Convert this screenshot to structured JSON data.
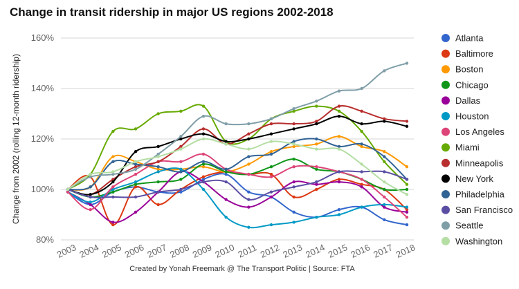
{
  "chart_data": {
    "type": "line",
    "title": "Change in transit ridership in major US regions 2002-2018",
    "ylabel": "Change from 2002 (rolling 12-month ridership)",
    "xlabel": "",
    "x": [
      "2003",
      "2004",
      "2005",
      "2006",
      "2007",
      "2008",
      "2009",
      "2010",
      "2011",
      "2012",
      "2013",
      "2014",
      "2015",
      "2016",
      "2017",
      "2018"
    ],
    "ylim": [
      80,
      160
    ],
    "yticks": [
      80,
      100,
      120,
      140,
      160
    ],
    "ytick_labels": [
      "80%",
      "100%",
      "120%",
      "140%",
      "160%"
    ],
    "grid": true,
    "legend_position": "right",
    "footer": "Created by Yonah Freemark @ The Transport Politic | Source: FTA",
    "series": [
      {
        "name": "Atlanta",
        "color": "#3366cc",
        "values": [
          99,
          94,
          99,
          101,
          99,
          99,
          104,
          106,
          99,
          97,
          91,
          89,
          92,
          93,
          88,
          86
        ]
      },
      {
        "name": "Baltimore",
        "color": "#dc3912",
        "values": [
          100,
          105,
          86,
          101,
          94,
          100,
          105,
          107,
          106,
          106,
          97,
          100,
          104,
          102,
          100,
          92
        ]
      },
      {
        "name": "Boston",
        "color": "#ff9900",
        "values": [
          100,
          101,
          113,
          111,
          108,
          108,
          109,
          107,
          110,
          115,
          117,
          118,
          121,
          117,
          115,
          109
        ]
      },
      {
        "name": "Chicago",
        "color": "#109618",
        "values": [
          100,
          97,
          99,
          102,
          103,
          104,
          110,
          107,
          106,
          109,
          112,
          108,
          107,
          104,
          100,
          100
        ]
      },
      {
        "name": "Dallas",
        "color": "#990099",
        "values": [
          99,
          94,
          87,
          91,
          99,
          107,
          103,
          96,
          93,
          97,
          103,
          102,
          103,
          101,
          93,
          91
        ]
      },
      {
        "name": "Houston",
        "color": "#0099c6",
        "values": [
          99,
          95,
          100,
          103,
          107,
          108,
          100,
          89,
          85,
          86,
          87,
          89,
          90,
          93,
          94,
          93
        ]
      },
      {
        "name": "Los Angeles",
        "color": "#dd4477",
        "values": [
          99,
          92,
          101,
          106,
          111,
          111,
          114,
          108,
          106,
          105,
          109,
          109,
          107,
          104,
          97,
          89
        ]
      },
      {
        "name": "Miami",
        "color": "#66aa00",
        "values": [
          100,
          106,
          123,
          124,
          130,
          131,
          133,
          119,
          120,
          128,
          131,
          133,
          131,
          123,
          111,
          102
        ]
      },
      {
        "name": "Minneapolis",
        "color": "#b82e2e",
        "values": [
          100,
          98,
          104,
          109,
          111,
          117,
          124,
          118,
          122,
          126,
          126,
          127,
          133,
          131,
          128,
          127
        ]
      },
      {
        "name": "New York",
        "color": "#000000",
        "values": [
          100,
          98,
          103,
          115,
          117,
          120,
          122,
          119,
          120,
          122,
          124,
          126,
          129,
          126,
          127,
          125
        ]
      },
      {
        "name": "Philadelphia",
        "color": "#316395",
        "values": [
          100,
          101,
          111,
          110,
          109,
          107,
          111,
          108,
          113,
          114,
          119,
          120,
          117,
          118,
          113,
          104
        ]
      },
      {
        "name": "San Francisco",
        "color": "#5a4ea4",
        "values": [
          100,
          97,
          97,
          97,
          99,
          100,
          103,
          103,
          96,
          99,
          101,
          103,
          107,
          107,
          107,
          104
        ]
      },
      {
        "name": "Seattle",
        "color": "#7f9ea8",
        "values": [
          100,
          105,
          106,
          108,
          114,
          121,
          129,
          126,
          126,
          128,
          132,
          135,
          139,
          140,
          147,
          150
        ]
      },
      {
        "name": "Washington",
        "color": "#b4dea4",
        "values": [
          100,
          106,
          107,
          111,
          113,
          116,
          120,
          118,
          116,
          119,
          118,
          116,
          116,
          110,
          103,
          98
        ]
      }
    ]
  }
}
